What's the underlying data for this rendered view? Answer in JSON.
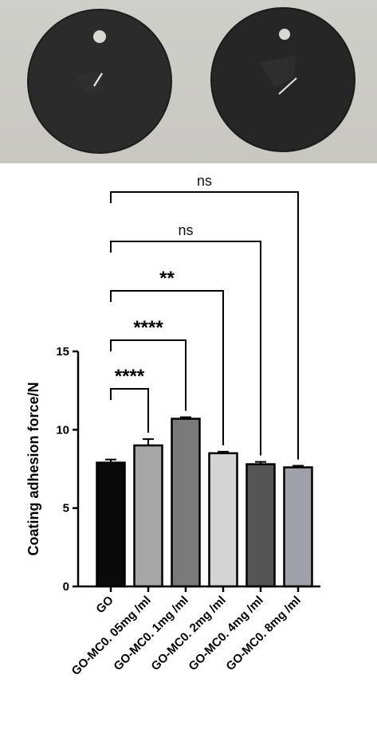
{
  "chart_data": {
    "type": "bar",
    "categories": [
      "GO",
      "GO-MC0. 05mg /ml",
      "GO-MC0. 1mg /ml",
      "GO-MC0. 2mg /ml",
      "GO-MC0. 4mg /ml",
      "GO-MC0. 8mg /ml"
    ],
    "values": [
      7.9,
      9.0,
      10.7,
      8.5,
      7.8,
      7.6
    ],
    "errors": [
      0.2,
      0.4,
      0.1,
      0.1,
      0.15,
      0.1
    ],
    "colors": [
      "#0a0a0a",
      "#a6a6a6",
      "#7a7a7a",
      "#d4d4d4",
      "#555555",
      "#a0a0a8"
    ],
    "ylabel": "Coating adhesion force/N",
    "ylim": [
      0,
      15
    ],
    "yticks": [
      "0",
      "5",
      "10",
      "15"
    ],
    "grid": false,
    "significance": [
      {
        "from": 0,
        "to": 1,
        "label": "****"
      },
      {
        "from": 0,
        "to": 2,
        "label": "****"
      },
      {
        "from": 0,
        "to": 3,
        "label": "**"
      },
      {
        "from": 0,
        "to": 4,
        "label": "ns"
      },
      {
        "from": 0,
        "to": 5,
        "label": "ns"
      }
    ]
  },
  "photo": {
    "background": "#cbcac5",
    "disc_color": "#2a2a2a",
    "samples": [
      "disc-left",
      "disc-right"
    ]
  }
}
